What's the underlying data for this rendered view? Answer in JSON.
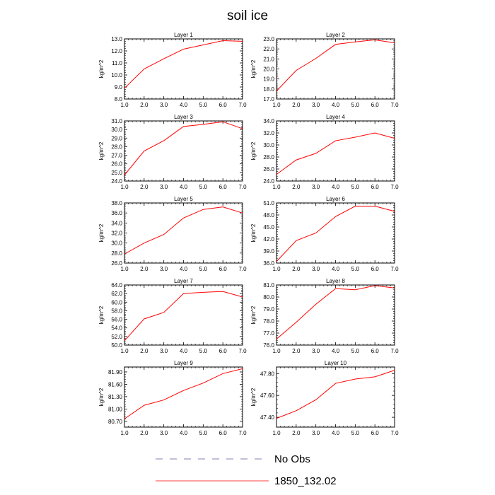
{
  "title": "soil ice",
  "legend": [
    {
      "label": "No Obs",
      "color": "#5a5aa0",
      "dash": true
    },
    {
      "label": "1850_132.02",
      "color": "#ff0000",
      "dash": false
    }
  ],
  "chart_data": [
    {
      "type": "line",
      "title": "Layer 1",
      "ylabel": "kg/m^2",
      "x": [
        1,
        2,
        3,
        4,
        5,
        6,
        7
      ],
      "ylim": [
        8.0,
        13.0
      ],
      "yticks": [
        "8.0",
        "9.0",
        "10.0",
        "11.0",
        "12.0",
        "13.0"
      ],
      "xticks": [
        "1.0",
        "2.0",
        "3.0",
        "4.0",
        "5.0",
        "6.0",
        "7.0"
      ],
      "series": [
        {
          "values": [
            8.9,
            10.5,
            11.35,
            12.15,
            12.5,
            12.85,
            12.8
          ]
        }
      ]
    },
    {
      "type": "line",
      "title": "Layer 2",
      "ylabel": "kg/m^2",
      "x": [
        1,
        2,
        3,
        4,
        5,
        6,
        7
      ],
      "ylim": [
        17.0,
        23.0
      ],
      "yticks": [
        "17.0",
        "18.0",
        "19.0",
        "20.0",
        "21.0",
        "22.0",
        "23.0"
      ],
      "xticks": [
        "1.0",
        "2.0",
        "3.0",
        "4.0",
        "5.0",
        "6.0",
        "7.0"
      ],
      "series": [
        {
          "values": [
            17.8,
            19.85,
            21.05,
            22.45,
            22.7,
            22.9,
            22.6
          ]
        }
      ]
    },
    {
      "type": "line",
      "title": "Layer 3",
      "ylabel": "kg/m^2",
      "x": [
        1,
        2,
        3,
        4,
        5,
        6,
        7
      ],
      "ylim": [
        24.0,
        31.0
      ],
      "yticks": [
        "24.0",
        "25.0",
        "26.0",
        "27.0",
        "28.0",
        "29.0",
        "30.0",
        "31.0"
      ],
      "xticks": [
        "1.0",
        "2.0",
        "3.0",
        "4.0",
        "5.0",
        "6.0",
        "7.0"
      ],
      "series": [
        {
          "values": [
            24.7,
            27.5,
            28.7,
            30.35,
            30.6,
            30.9,
            30.1
          ]
        }
      ]
    },
    {
      "type": "line",
      "title": "Layer 4",
      "ylabel": "kg/m^2",
      "x": [
        1,
        2,
        3,
        4,
        5,
        6,
        7
      ],
      "ylim": [
        24.0,
        34.0
      ],
      "yticks": [
        "24.0",
        "26.0",
        "28.0",
        "30.0",
        "32.0",
        "34.0"
      ],
      "xticks": [
        "1.0",
        "2.0",
        "3.0",
        "4.0",
        "5.0",
        "6.0",
        "7.0"
      ],
      "series": [
        {
          "values": [
            25.1,
            27.5,
            28.6,
            30.7,
            31.3,
            32.0,
            31.1
          ]
        }
      ]
    },
    {
      "type": "line",
      "title": "Layer 5",
      "ylabel": "kg/m^2",
      "x": [
        1,
        2,
        3,
        4,
        5,
        6,
        7
      ],
      "ylim": [
        26.0,
        38.0
      ],
      "yticks": [
        "26.0",
        "28.0",
        "30.0",
        "32.0",
        "34.0",
        "36.0",
        "38.0"
      ],
      "xticks": [
        "1.0",
        "2.0",
        "3.0",
        "4.0",
        "5.0",
        "6.0",
        "7.0"
      ],
      "series": [
        {
          "values": [
            27.8,
            30.0,
            31.7,
            35.0,
            36.7,
            37.2,
            36.0
          ]
        }
      ]
    },
    {
      "type": "line",
      "title": "Layer 6",
      "ylabel": "kg/m^2",
      "x": [
        1,
        2,
        3,
        4,
        5,
        6,
        7
      ],
      "ylim": [
        36.0,
        51.0
      ],
      "yticks": [
        "36.0",
        "39.0",
        "42.0",
        "45.0",
        "48.0",
        "51.0"
      ],
      "xticks": [
        "1.0",
        "2.0",
        "3.0",
        "4.0",
        "5.0",
        "6.0",
        "7.0"
      ],
      "series": [
        {
          "values": [
            36.4,
            41.6,
            43.5,
            47.6,
            50.2,
            50.2,
            48.9
          ]
        }
      ]
    },
    {
      "type": "line",
      "title": "Layer 7",
      "ylabel": "kg/m^2",
      "x": [
        1,
        2,
        3,
        4,
        5,
        6,
        7
      ],
      "ylim": [
        50.0,
        64.0
      ],
      "yticks": [
        "50.0",
        "52.0",
        "54.0",
        "56.0",
        "58.0",
        "60.0",
        "62.0",
        "64.0"
      ],
      "xticks": [
        "1.0",
        "2.0",
        "3.0",
        "4.0",
        "5.0",
        "6.0",
        "7.0"
      ],
      "series": [
        {
          "values": [
            51.0,
            56.1,
            57.6,
            62.0,
            62.3,
            62.5,
            61.2
          ]
        }
      ]
    },
    {
      "type": "line",
      "title": "Layer 8",
      "ylabel": "kg/m^2",
      "x": [
        1,
        2,
        3,
        4,
        5,
        6,
        7
      ],
      "ylim": [
        76.0,
        81.0
      ],
      "yticks": [
        "76.0",
        "77.0",
        "78.0",
        "79.0",
        "80.0",
        "81.0"
      ],
      "xticks": [
        "1.0",
        "2.0",
        "3.0",
        "4.0",
        "5.0",
        "6.0",
        "7.0"
      ],
      "series": [
        {
          "values": [
            76.5,
            77.9,
            79.4,
            80.7,
            80.6,
            80.95,
            80.75
          ]
        }
      ]
    },
    {
      "type": "line",
      "title": "Layer 9",
      "ylabel": "kg/m^2",
      "x": [
        1,
        2,
        3,
        4,
        5,
        6,
        7
      ],
      "ylim": [
        80.56,
        82.02
      ],
      "yticks": [
        "80.70",
        "81.00",
        "81.30",
        "81.60",
        "81.90"
      ],
      "ytick_values": [
        80.7,
        81.0,
        81.3,
        81.6,
        81.9
      ],
      "xticks": [
        "1.0",
        "2.0",
        "3.0",
        "4.0",
        "5.0",
        "6.0",
        "7.0"
      ],
      "series": [
        {
          "values": [
            80.76,
            81.09,
            81.22,
            81.45,
            81.63,
            81.86,
            81.98
          ]
        }
      ]
    },
    {
      "type": "line",
      "title": "Layer 10",
      "ylabel": "kg/m^2",
      "x": [
        1,
        2,
        3,
        4,
        5,
        6,
        7
      ],
      "ylim": [
        47.31,
        47.86
      ],
      "yticks": [
        "47.40",
        "47.60",
        "47.80"
      ],
      "ytick_values": [
        47.4,
        47.6,
        47.8
      ],
      "xticks": [
        "1.0",
        "2.0",
        "3.0",
        "4.0",
        "5.0",
        "6.0",
        "7.0"
      ],
      "series": [
        {
          "values": [
            47.39,
            47.46,
            47.56,
            47.71,
            47.75,
            47.77,
            47.83
          ]
        }
      ]
    }
  ]
}
